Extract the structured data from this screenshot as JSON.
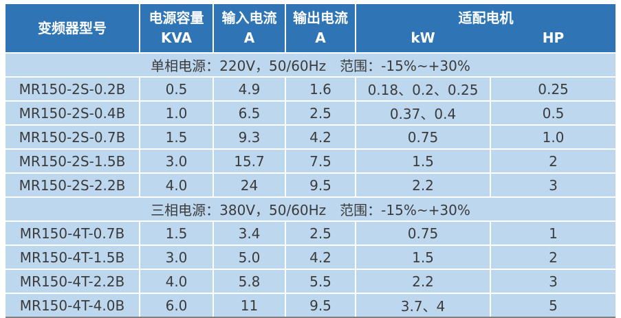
{
  "table": {
    "header": {
      "model": "变频器型号",
      "capacity_line1": "电源容量",
      "capacity_line2": "KVA",
      "input_line1": "输入电流",
      "input_line2": "A",
      "output_line1": "输出电流",
      "output_line2": "A",
      "motor": "适配电机",
      "motor_kw": "kW",
      "motor_hp": "HP"
    },
    "sections": [
      {
        "title": "单相电源：220V，50/60Hz　范围：-15%~+30%",
        "rows": [
          [
            "MR150-2S-0.2B",
            "0.5",
            "4.9",
            "1.6",
            "0.18、0.2、0.25",
            "0.25"
          ],
          [
            "MR150-2S-0.4B",
            "1.0",
            "6.5",
            "2.5",
            "0.37、0.4",
            "0.5"
          ],
          [
            "MR150-2S-0.7B",
            "1.5",
            "9.3",
            "4.2",
            "0.75",
            "1.0"
          ],
          [
            "MR150-2S-1.5B",
            "3.0",
            "15.7",
            "7.5",
            "1.5",
            "2"
          ],
          [
            "MR150-2S-2.2B",
            "4.0",
            "24",
            "9.5",
            "2.2",
            "3"
          ]
        ]
      },
      {
        "title": "三相电源：380V，50/60Hz　范围：-15%~+30%",
        "rows": [
          [
            "MR150-4T-0.7B",
            "1.5",
            "3.4",
            "2.5",
            "0.75",
            "1"
          ],
          [
            "MR150-4T-1.5B",
            "3.0",
            "5.0",
            "4.2",
            "1.5",
            "2"
          ],
          [
            "MR150-4T-2.2B",
            "4.0",
            "5.8",
            "5.5",
            "2.2",
            "3"
          ],
          [
            "MR150-4T-4.0B",
            "6.0",
            "11",
            "9.5",
            "3.7、4",
            "5"
          ]
        ]
      }
    ],
    "colors": {
      "header_bg": "#2f75b5",
      "row_bg": "#bdd7ee",
      "header_text": "#ffffff",
      "data_text": "#3b3b3b",
      "bottom_border": "#7f7f7f"
    }
  }
}
